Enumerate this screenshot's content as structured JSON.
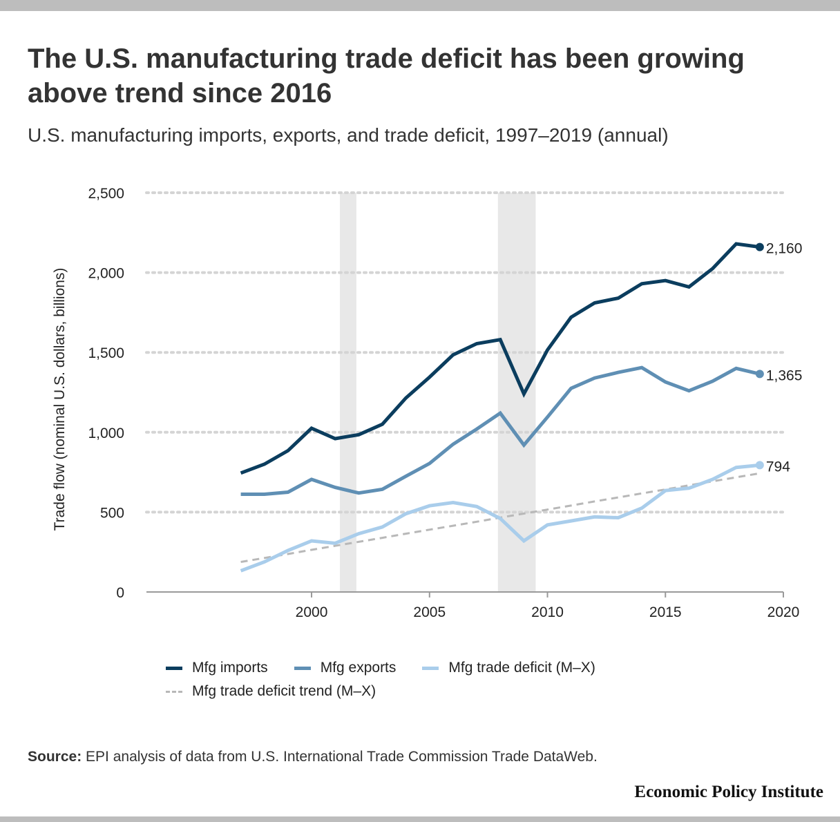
{
  "title": "The U.S. manufacturing trade deficit has been growing above trend since 2016",
  "subtitle": "U.S. manufacturing imports, exports, and trade deficit, 1997–2019 (annual)",
  "source_label": "Source:",
  "source_text": "EPI analysis of data from U.S. International Trade Commission Trade DataWeb.",
  "brand": "Economic Policy Institute",
  "colors": {
    "imports": "#0b3d5e",
    "exports": "#5f8fb4",
    "deficit": "#a9cdeb",
    "trend": "#b8b8b8",
    "recession": "#e8e8e8",
    "grid": "#d4d4d4"
  },
  "chart_data": {
    "type": "line",
    "title": "The U.S. manufacturing trade deficit has been growing above trend since 2016",
    "subtitle": "U.S. manufacturing imports, exports, and trade deficit, 1997–2019 (annual)",
    "xlabel": "",
    "ylabel": "Trade flow (nominal U.S. dollars, billions)",
    "xlim": [
      1993,
      2020
    ],
    "ylim": [
      0,
      2500
    ],
    "xticks": [
      2000,
      2005,
      2010,
      2015,
      2020
    ],
    "yticks": [
      0,
      500,
      1000,
      1500,
      2000,
      2500
    ],
    "ytick_labels": [
      "0",
      "500",
      "1,000",
      "1,500",
      "2,000",
      "2,500"
    ],
    "grid": "horizontal dotted",
    "legend_position": "bottom",
    "recession_bands": [
      [
        2001.2,
        2001.9
      ],
      [
        2007.9,
        2009.5
      ]
    ],
    "x": [
      1997,
      1998,
      1999,
      2000,
      2001,
      2002,
      2003,
      2004,
      2005,
      2006,
      2007,
      2008,
      2009,
      2010,
      2011,
      2012,
      2013,
      2014,
      2015,
      2016,
      2017,
      2018,
      2019
    ],
    "series": [
      {
        "name": "Mfg imports",
        "key": "imports",
        "style": "solid",
        "end_label": "2,160",
        "values": [
          745,
          800,
          885,
          1025,
          960,
          985,
          1050,
          1215,
          1345,
          1485,
          1555,
          1580,
          1240,
          1515,
          1720,
          1810,
          1840,
          1930,
          1950,
          1910,
          2025,
          2180,
          2160
        ]
      },
      {
        "name": "Mfg exports",
        "key": "exports",
        "style": "solid",
        "end_label": "1,365",
        "values": [
          612,
          612,
          625,
          705,
          655,
          620,
          643,
          725,
          805,
          925,
          1020,
          1120,
          920,
          1095,
          1275,
          1340,
          1375,
          1405,
          1315,
          1260,
          1320,
          1400,
          1365
        ]
      },
      {
        "name": "Mfg trade deficit (M–X)",
        "key": "deficit",
        "style": "solid",
        "end_label": "794",
        "values": [
          133,
          188,
          260,
          320,
          305,
          365,
          407,
          490,
          540,
          560,
          535,
          460,
          320,
          420,
          445,
          470,
          465,
          525,
          635,
          650,
          705,
          780,
          794
        ]
      },
      {
        "name": "Mfg trade deficit trend (M–X)",
        "key": "trend",
        "style": "dashed",
        "end_label": "",
        "values": [
          188,
          213,
          238,
          264,
          289,
          314,
          339,
          365,
          390,
          415,
          440,
          466,
          491,
          516,
          541,
          567,
          592,
          617,
          642,
          668,
          693,
          718,
          743
        ]
      }
    ]
  }
}
